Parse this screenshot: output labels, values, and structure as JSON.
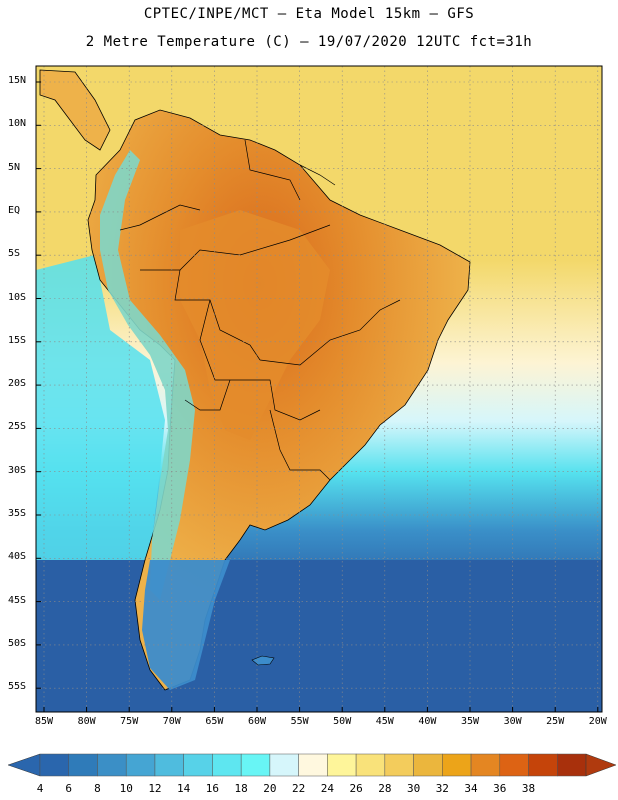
{
  "header": {
    "line1": "CPTEC/INPE/MCT –  Eta Model 15km – GFS",
    "line2": "2 Metre Temperature (C) – 19/07/2020 12UTC fct=31h"
  },
  "map": {
    "lat_labels": [
      "15N",
      "10N",
      "5N",
      "EQ",
      "5S",
      "10S",
      "15S",
      "20S",
      "25S",
      "30S",
      "35S",
      "40S",
      "45S",
      "50S",
      "55S"
    ],
    "lon_labels": [
      "85W",
      "80W",
      "75W",
      "70W",
      "65W",
      "60W",
      "55W",
      "50W",
      "45W",
      "40W",
      "35W",
      "30W",
      "25W",
      "20W"
    ]
  },
  "colorbar": {
    "labels": [
      "4",
      "6",
      "8",
      "10",
      "12",
      "14",
      "16",
      "18",
      "20",
      "22",
      "24",
      "26",
      "28",
      "30",
      "32",
      "34",
      "36",
      "38"
    ],
    "colors": [
      "#2a66ad",
      "#2f7bb9",
      "#3b8fc6",
      "#45a5d3",
      "#4fbcde",
      "#57d2e8",
      "#5ee6f0",
      "#68f5f5",
      "#d6f6fb",
      "#fff8df",
      "#fef59a",
      "#f9e27a",
      "#f3cc5c",
      "#ebb63d",
      "#eca419",
      "#e48622",
      "#dd6314",
      "#c5440a",
      "#a8300c"
    ],
    "end_left": "#2a66ad",
    "end_right": "#b03a0e"
  },
  "palette": {
    "ocean_deep": "#2a5fa5",
    "ocean_mid": "#3a8fc8",
    "ocean_cyan": "#55e1ee",
    "ocean_pale": "#d6f6fb",
    "ocean_cream": "#fdf4d4",
    "ocean_yellow": "#f3d86a",
    "land_warm": "#eeb24a",
    "land_hot": "#e48c2c",
    "land_hottest": "#d8691c",
    "andes_cool": "#7fd6c8",
    "patagonia": "#3c8ccb"
  }
}
